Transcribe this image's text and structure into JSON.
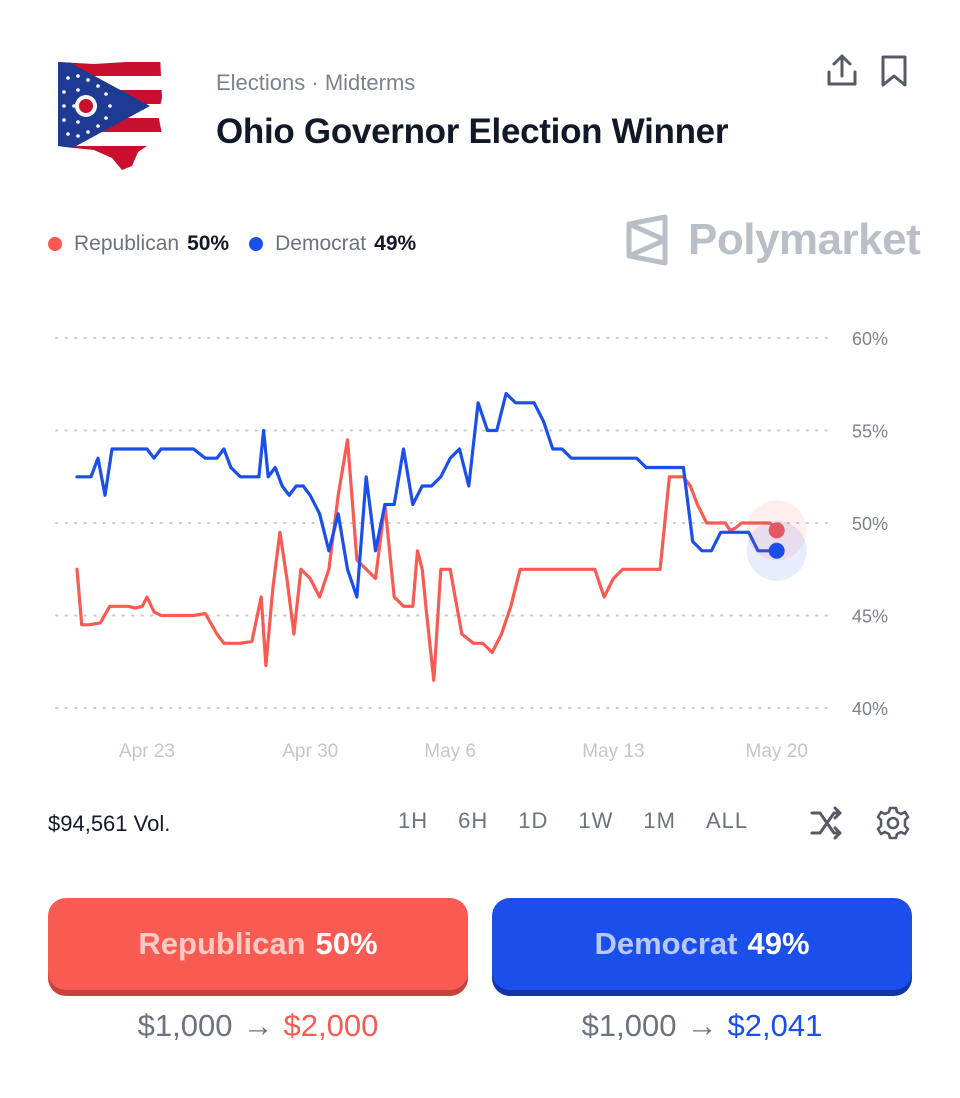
{
  "header": {
    "breadcrumb": "Elections · Midterms",
    "title": "Ohio Governor Election Winner"
  },
  "brand": {
    "name": "Polymarket"
  },
  "legend": [
    {
      "name": "Republican",
      "value": "50%",
      "color": "#f95a52"
    },
    {
      "name": "Democrat",
      "value": "49%",
      "color": "#1a4fec"
    }
  ],
  "volume": "$94,561 Vol.",
  "ranges": [
    "1H",
    "6H",
    "1D",
    "1W",
    "1M",
    "ALL"
  ],
  "icons": {
    "share": "share-icon",
    "bookmark": "bookmark-icon",
    "shuffle": "shuffle-icon",
    "settings": "gear-icon",
    "flag": "ohio-flag-icon",
    "logo": "polymarket-logo-icon"
  },
  "buttons": {
    "republican": {
      "name": "Republican",
      "pct": "50%"
    },
    "democrat": {
      "name": "Democrat",
      "pct": "49%"
    }
  },
  "payouts": {
    "republican": {
      "from": "$1,000",
      "arrow": "→",
      "to": "$2,000"
    },
    "democrat": {
      "from": "$1,000",
      "arrow": "→",
      "to": "$2,041"
    }
  },
  "chart_data": {
    "type": "line",
    "xlim": [
      0,
      31
    ],
    "ylim": [
      40,
      60
    ],
    "y_ticks": [
      60,
      55,
      50,
      45,
      40
    ],
    "y_tick_suffix": "%",
    "x_ticks": [
      {
        "label": "Apr 23",
        "x": 3
      },
      {
        "label": "Apr 30",
        "x": 10
      },
      {
        "label": "May 6",
        "x": 16
      },
      {
        "label": "May 13",
        "x": 23
      },
      {
        "label": "May 20",
        "x": 30
      }
    ],
    "grid": true,
    "series": [
      {
        "name": "Republican",
        "color": "#f95a52",
        "x": [
          0,
          0.2,
          0.5,
          1,
          1.4,
          1.8,
          2.2,
          2.5,
          2.8,
          3,
          3.3,
          3.6,
          4,
          4.5,
          5,
          5.5,
          6,
          6.3,
          6.5,
          7,
          7.5,
          7.9,
          8.1,
          8.4,
          8.7,
          9,
          9.3,
          9.6,
          10,
          10.4,
          10.8,
          11.2,
          11.6,
          12,
          12.4,
          12.8,
          13.2,
          13.6,
          14,
          14.2,
          14.4,
          14.6,
          14.8,
          15,
          15.3,
          15.6,
          16,
          16.5,
          17,
          17.4,
          17.8,
          18.2,
          18.6,
          19,
          19.4,
          19.8,
          20.2,
          20.6,
          21,
          21.4,
          21.8,
          22.2,
          22.6,
          23,
          23.4,
          23.8,
          24.2,
          24.6,
          25,
          25.4,
          25.8,
          26,
          26.3,
          26.6,
          27,
          27.4,
          27.8,
          28,
          28.2,
          28.5,
          28.8,
          29.2,
          29.5,
          29.7,
          29.9,
          30
        ],
        "y": [
          47.5,
          44.5,
          44.5,
          44.6,
          45.5,
          45.5,
          45.5,
          45.4,
          45.5,
          46,
          45.2,
          45,
          45,
          45,
          45,
          45.1,
          44,
          43.5,
          43.5,
          43.5,
          43.6,
          46,
          42.3,
          46.5,
          49.5,
          47,
          44,
          47.5,
          47,
          46,
          47.5,
          51.5,
          54.5,
          48,
          47.5,
          47,
          51,
          46,
          45.5,
          45.5,
          45.5,
          48.5,
          47.5,
          45,
          41.5,
          47.5,
          47.5,
          44,
          43.5,
          43.5,
          43,
          44,
          45.5,
          47.5,
          47.5,
          47.5,
          47.5,
          47.5,
          47.5,
          47.5,
          47.5,
          47.5,
          46,
          47,
          47.5,
          47.5,
          47.5,
          47.5,
          47.5,
          52.5,
          52.5,
          52.5,
          52,
          51,
          50,
          50,
          50,
          49.6,
          49.7,
          50,
          50,
          50,
          50,
          50,
          49.8,
          49.6
        ]
      },
      {
        "name": "Democrat",
        "color": "#1a4fec",
        "x": [
          0,
          0.3,
          0.6,
          0.9,
          1.2,
          1.5,
          1.8,
          2.1,
          2.4,
          2.7,
          3,
          3.3,
          3.6,
          4,
          4.5,
          5,
          5.5,
          6,
          6.3,
          6.6,
          7,
          7.4,
          7.8,
          8,
          8.2,
          8.5,
          8.8,
          9.1,
          9.4,
          9.7,
          10,
          10.4,
          10.8,
          11.2,
          11.6,
          12,
          12.4,
          12.8,
          13.2,
          13.6,
          14,
          14.4,
          14.8,
          15.2,
          15.6,
          16,
          16.4,
          16.8,
          17.2,
          17.6,
          18,
          18.4,
          18.8,
          19.2,
          19.6,
          20,
          20.4,
          20.8,
          21.2,
          21.6,
          22,
          22.4,
          22.8,
          23.2,
          23.6,
          24,
          24.4,
          24.8,
          25.2,
          25.6,
          26,
          26.4,
          26.8,
          27.2,
          27.6,
          28,
          28.4,
          28.8,
          29.2,
          29.5,
          29.8,
          30
        ],
        "y": [
          52.5,
          52.5,
          52.5,
          53.5,
          51.5,
          54,
          54,
          54,
          54,
          54,
          54,
          53.5,
          54,
          54,
          54,
          54,
          53.5,
          53.5,
          54,
          53,
          52.5,
          52.5,
          52.5,
          55,
          52.5,
          53,
          52,
          51.5,
          52,
          52,
          51.5,
          50.5,
          48.5,
          50.5,
          47.5,
          46,
          52.5,
          48.5,
          51,
          51,
          54,
          51,
          52,
          52,
          52.5,
          53.5,
          54,
          52,
          56.5,
          55,
          55,
          57,
          56.5,
          56.5,
          56.5,
          55.5,
          54,
          54,
          53.5,
          53.5,
          53.5,
          53.5,
          53.5,
          53.5,
          53.5,
          53.5,
          53,
          53,
          53,
          53,
          53,
          49,
          48.5,
          48.5,
          49.5,
          49.5,
          49.5,
          49.5,
          48.5,
          48.5,
          48.5,
          48.5
        ]
      }
    ]
  }
}
